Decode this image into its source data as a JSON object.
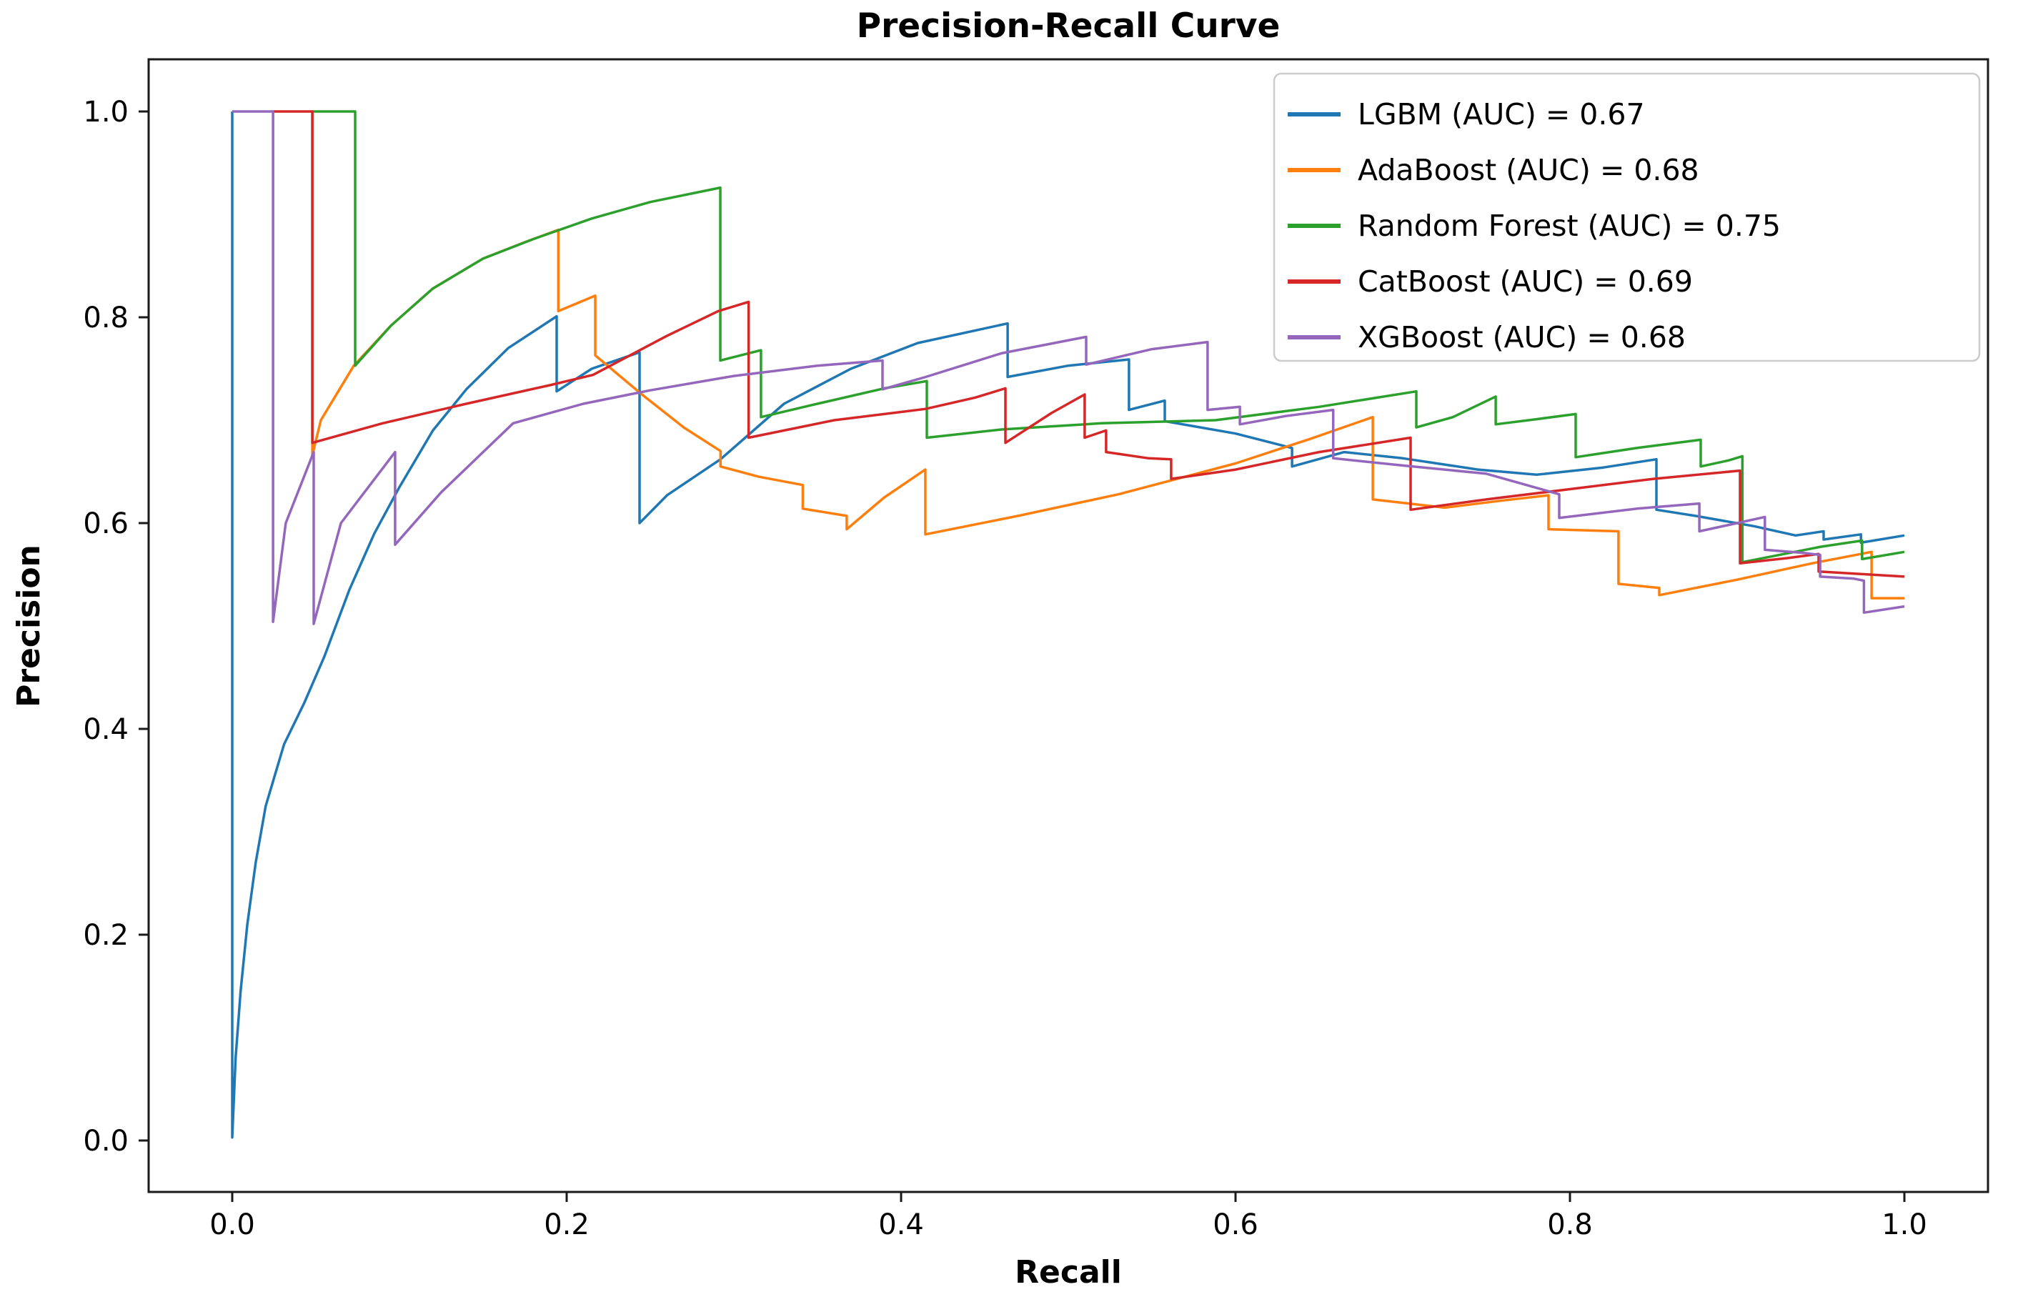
{
  "chart_data": {
    "type": "line",
    "title": "Precision-Recall Curve",
    "xlabel": "Recall",
    "ylabel": "Precision",
    "xlim": [
      0,
      1
    ],
    "ylim": [
      0,
      1
    ],
    "x_tick_labels": [
      "0.0",
      "0.2",
      "0.4",
      "0.6",
      "0.8",
      "1.0"
    ],
    "x_tick_values": [
      0.0,
      0.2,
      0.4,
      0.6,
      0.8,
      1.0
    ],
    "y_tick_labels": [
      "0.0",
      "0.2",
      "0.4",
      "0.6",
      "0.8",
      "1.0"
    ],
    "y_tick_values": [
      0.0,
      0.2,
      0.4,
      0.6,
      0.8,
      1.0
    ],
    "grid": false,
    "legend_position": "upper right",
    "legend": [
      {
        "label": "LGBM (AUC) = 0.67",
        "color": "#1f77b4"
      },
      {
        "label": "AdaBoost (AUC) = 0.68",
        "color": "#ff7f0e"
      },
      {
        "label": "Random Forest (AUC) = 0.75",
        "color": "#2ca02c"
      },
      {
        "label": "CatBoost (AUC) = 0.69",
        "color": "#d62728"
      },
      {
        "label": "XGBoost (AUC) = 0.68",
        "color": "#9467bd"
      }
    ],
    "series": [
      {
        "name": "LGBM",
        "color": "#1f77b4",
        "auc": 0.67,
        "points": [
          [
            0,
            1
          ],
          [
            0,
            0.003
          ],
          [
            0.002,
            0.08
          ],
          [
            0.005,
            0.145
          ],
          [
            0.009,
            0.21
          ],
          [
            0.014,
            0.27
          ],
          [
            0.02,
            0.325
          ],
          [
            0.031,
            0.385
          ],
          [
            0.043,
            0.425
          ],
          [
            0.055,
            0.47
          ],
          [
            0.07,
            0.535
          ],
          [
            0.085,
            0.59
          ],
          [
            0.1,
            0.635
          ],
          [
            0.12,
            0.69
          ],
          [
            0.14,
            0.73
          ],
          [
            0.165,
            0.77
          ],
          [
            0.194,
            0.801
          ],
          [
            0.194,
            0.728
          ],
          [
            0.215,
            0.75
          ],
          [
            0.2436,
            0.766
          ],
          [
            0.2436,
            0.6
          ],
          [
            0.26,
            0.627
          ],
          [
            0.292,
            0.662
          ],
          [
            0.33,
            0.716
          ],
          [
            0.37,
            0.75
          ],
          [
            0.41,
            0.775
          ],
          [
            0.4637,
            0.794
          ],
          [
            0.4637,
            0.742
          ],
          [
            0.5,
            0.753
          ],
          [
            0.5363,
            0.759
          ],
          [
            0.5363,
            0.71
          ],
          [
            0.5577,
            0.719
          ],
          [
            0.5577,
            0.699
          ],
          [
            0.6,
            0.687
          ],
          [
            0.6338,
            0.673
          ],
          [
            0.6338,
            0.655
          ],
          [
            0.665,
            0.669
          ],
          [
            0.7,
            0.663
          ],
          [
            0.745,
            0.652
          ],
          [
            0.78,
            0.647
          ],
          [
            0.82,
            0.654
          ],
          [
            0.8517,
            0.662
          ],
          [
            0.8517,
            0.613
          ],
          [
            0.875,
            0.607
          ],
          [
            0.91,
            0.597
          ],
          [
            0.935,
            0.588
          ],
          [
            0.9517,
            0.592
          ],
          [
            0.9517,
            0.584
          ],
          [
            0.974,
            0.589
          ],
          [
            0.974,
            0.581
          ],
          [
            1,
            0.588
          ]
        ]
      },
      {
        "name": "AdaBoost",
        "color": "#ff7f0e",
        "auc": 0.68,
        "points": [
          [
            0.0479,
            1
          ],
          [
            0.0479,
            0.666
          ],
          [
            0.053,
            0.7
          ],
          [
            0.0727,
            0.753
          ],
          [
            0.095,
            0.792
          ],
          [
            0.12,
            0.828
          ],
          [
            0.15,
            0.857
          ],
          [
            0.175,
            0.873
          ],
          [
            0.195,
            0.885
          ],
          [
            0.195,
            0.806
          ],
          [
            0.2171,
            0.821
          ],
          [
            0.2171,
            0.763
          ],
          [
            0.245,
            0.725
          ],
          [
            0.27,
            0.693
          ],
          [
            0.292,
            0.67
          ],
          [
            0.292,
            0.655
          ],
          [
            0.315,
            0.645
          ],
          [
            0.3412,
            0.637
          ],
          [
            0.3412,
            0.614
          ],
          [
            0.3675,
            0.607
          ],
          [
            0.3675,
            0.594
          ],
          [
            0.39,
            0.625
          ],
          [
            0.4145,
            0.652
          ],
          [
            0.4145,
            0.589
          ],
          [
            0.47,
            0.607
          ],
          [
            0.53,
            0.628
          ],
          [
            0.6,
            0.658
          ],
          [
            0.645,
            0.682
          ],
          [
            0.6821,
            0.703
          ],
          [
            0.6821,
            0.623
          ],
          [
            0.725,
            0.615
          ],
          [
            0.76,
            0.622
          ],
          [
            0.7872,
            0.627
          ],
          [
            0.7872,
            0.594
          ],
          [
            0.829,
            0.592
          ],
          [
            0.829,
            0.541
          ],
          [
            0.8534,
            0.537
          ],
          [
            0.8534,
            0.53
          ],
          [
            0.9,
            0.545
          ],
          [
            0.945,
            0.561
          ],
          [
            0.9804,
            0.572
          ],
          [
            0.9804,
            0.527
          ],
          [
            1,
            0.527
          ]
        ]
      },
      {
        "name": "Random Forest",
        "color": "#2ca02c",
        "auc": 0.75,
        "points": [
          [
            0.0479,
            1
          ],
          [
            0.0735,
            1
          ],
          [
            0.0735,
            0.753
          ],
          [
            0.095,
            0.792
          ],
          [
            0.12,
            0.828
          ],
          [
            0.15,
            0.857
          ],
          [
            0.18,
            0.876
          ],
          [
            0.215,
            0.896
          ],
          [
            0.25,
            0.912
          ],
          [
            0.2919,
            0.926
          ],
          [
            0.2919,
            0.758
          ],
          [
            0.3162,
            0.768
          ],
          [
            0.3162,
            0.703
          ],
          [
            0.35,
            0.716
          ],
          [
            0.39,
            0.731
          ],
          [
            0.4154,
            0.738
          ],
          [
            0.4154,
            0.683
          ],
          [
            0.46,
            0.691
          ],
          [
            0.52,
            0.697
          ],
          [
            0.588,
            0.7
          ],
          [
            0.65,
            0.713
          ],
          [
            0.7081,
            0.728
          ],
          [
            0.7081,
            0.693
          ],
          [
            0.73,
            0.703
          ],
          [
            0.7556,
            0.723
          ],
          [
            0.7556,
            0.696
          ],
          [
            0.78,
            0.701
          ],
          [
            0.8034,
            0.706
          ],
          [
            0.8034,
            0.664
          ],
          [
            0.84,
            0.673
          ],
          [
            0.8782,
            0.681
          ],
          [
            0.8782,
            0.655
          ],
          [
            0.895,
            0.661
          ],
          [
            0.9031,
            0.665
          ],
          [
            0.9031,
            0.562
          ],
          [
            0.95,
            0.577
          ],
          [
            0.9747,
            0.583
          ],
          [
            0.9747,
            0.565
          ],
          [
            1,
            0.572
          ]
        ]
      },
      {
        "name": "CatBoost",
        "color": "#d62728",
        "auc": 0.69,
        "points": [
          [
            0.0244,
            1
          ],
          [
            0.0479,
            1
          ],
          [
            0.0479,
            0.678
          ],
          [
            0.09,
            0.697
          ],
          [
            0.14,
            0.716
          ],
          [
            0.19,
            0.734
          ],
          [
            0.2158,
            0.744
          ],
          [
            0.26,
            0.782
          ],
          [
            0.2906,
            0.806
          ],
          [
            0.3088,
            0.815
          ],
          [
            0.3088,
            0.683
          ],
          [
            0.36,
            0.7
          ],
          [
            0.4147,
            0.711
          ],
          [
            0.4444,
            0.722
          ],
          [
            0.4624,
            0.731
          ],
          [
            0.4624,
            0.678
          ],
          [
            0.49,
            0.707
          ],
          [
            0.5098,
            0.725
          ],
          [
            0.5098,
            0.683
          ],
          [
            0.5226,
            0.69
          ],
          [
            0.5226,
            0.669
          ],
          [
            0.548,
            0.663
          ],
          [
            0.5615,
            0.662
          ],
          [
            0.5615,
            0.643
          ],
          [
            0.6,
            0.652
          ],
          [
            0.65,
            0.669
          ],
          [
            0.7047,
            0.683
          ],
          [
            0.7047,
            0.613
          ],
          [
            0.75,
            0.623
          ],
          [
            0.8,
            0.633
          ],
          [
            0.85,
            0.643
          ],
          [
            0.9017,
            0.651
          ],
          [
            0.9017,
            0.561
          ],
          [
            0.93,
            0.566
          ],
          [
            0.9487,
            0.57
          ],
          [
            0.9487,
            0.553
          ],
          [
            1,
            0.548
          ]
        ]
      },
      {
        "name": "XGBoost",
        "color": "#9467bd",
        "auc": 0.68,
        "points": [
          [
            0,
            1
          ],
          [
            0.0244,
            1
          ],
          [
            0.0244,
            0.504
          ],
          [
            0.032,
            0.6
          ],
          [
            0.0487,
            0.669
          ],
          [
            0.0487,
            0.502
          ],
          [
            0.065,
            0.6
          ],
          [
            0.0974,
            0.669
          ],
          [
            0.0974,
            0.579
          ],
          [
            0.125,
            0.63
          ],
          [
            0.168,
            0.697
          ],
          [
            0.21,
            0.716
          ],
          [
            0.25,
            0.729
          ],
          [
            0.3,
            0.743
          ],
          [
            0.35,
            0.753
          ],
          [
            0.3889,
            0.758
          ],
          [
            0.3889,
            0.73
          ],
          [
            0.4147,
            0.742
          ],
          [
            0.46,
            0.765
          ],
          [
            0.5107,
            0.781
          ],
          [
            0.5107,
            0.754
          ],
          [
            0.55,
            0.769
          ],
          [
            0.5833,
            0.776
          ],
          [
            0.5833,
            0.71
          ],
          [
            0.6026,
            0.713
          ],
          [
            0.6026,
            0.696
          ],
          [
            0.63,
            0.704
          ],
          [
            0.6584,
            0.71
          ],
          [
            0.6584,
            0.663
          ],
          [
            0.7,
            0.656
          ],
          [
            0.75,
            0.648
          ],
          [
            0.7936,
            0.628
          ],
          [
            0.7936,
            0.605
          ],
          [
            0.84,
            0.614
          ],
          [
            0.8774,
            0.619
          ],
          [
            0.8774,
            0.592
          ],
          [
            0.9,
            0.6
          ],
          [
            0.9166,
            0.606
          ],
          [
            0.9166,
            0.574
          ],
          [
            0.94,
            0.571
          ],
          [
            0.9496,
            0.569
          ],
          [
            0.9496,
            0.548
          ],
          [
            0.97,
            0.546
          ],
          [
            0.9758,
            0.544
          ],
          [
            0.9758,
            0.513
          ],
          [
            1,
            0.519
          ]
        ]
      }
    ]
  }
}
